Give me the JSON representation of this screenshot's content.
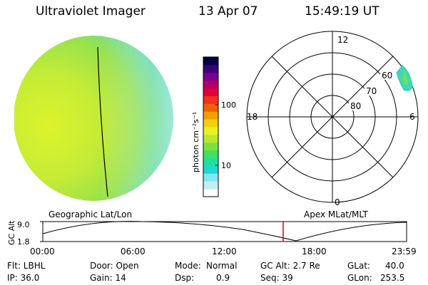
{
  "header": {
    "title": "Ultraviolet Imager",
    "date": "13 Apr 07",
    "time": "15:49:19 UT"
  },
  "colorbar": {
    "unit_label": "photon cm⁻²s⁻¹",
    "ticks": [
      "100",
      "10"
    ],
    "colors": [
      "#ffffff",
      "#c8ecf4",
      "#80e8f0",
      "#20d8d0",
      "#20e0a0",
      "#40e060",
      "#80e040",
      "#b8e830",
      "#e8f020",
      "#f0d010",
      "#f0a000",
      "#f06000",
      "#f03020",
      "#e0003a",
      "#b0006a",
      "#7a0090",
      "#3a0078",
      "#000040"
    ]
  },
  "polar": {
    "mlt_labels": {
      "top": "12",
      "left": "18",
      "right": "6",
      "bottom": "0"
    },
    "lat_labels": [
      "60",
      "70",
      "80"
    ]
  },
  "disk_caption": "Geographic Lat/Lon",
  "polar_caption": "Apex MLat/MLT",
  "altitude_plot": {
    "ylabel": "GC Alt",
    "yticks": [
      "9.0",
      "1.8"
    ],
    "xticks": [
      "00:00",
      "06:00",
      "12:00",
      "18:00",
      "23:59"
    ],
    "current_marker": "15:49"
  },
  "status": {
    "flt": "Flt: LBHL",
    "ip": "IP: 36.0",
    "door": "Door: Open",
    "gain": "Gain: 14",
    "mode_label": "Mode:",
    "mode_value": "Normal",
    "dsp_label": "Dsp:",
    "dsp_value": "0.9",
    "gc_alt": "GC Alt: 2.7 Re",
    "seq": "Seq: 39",
    "glat_label": "GLat:",
    "glat_value": "40.0",
    "glon_label": "GLon:",
    "glon_value": "253.5"
  },
  "colors": {
    "disk_bright": "#d8f020",
    "disk_mid": "#9ee040",
    "disk_edge": "#50d8c0",
    "orbit_marker": "#e00000"
  }
}
